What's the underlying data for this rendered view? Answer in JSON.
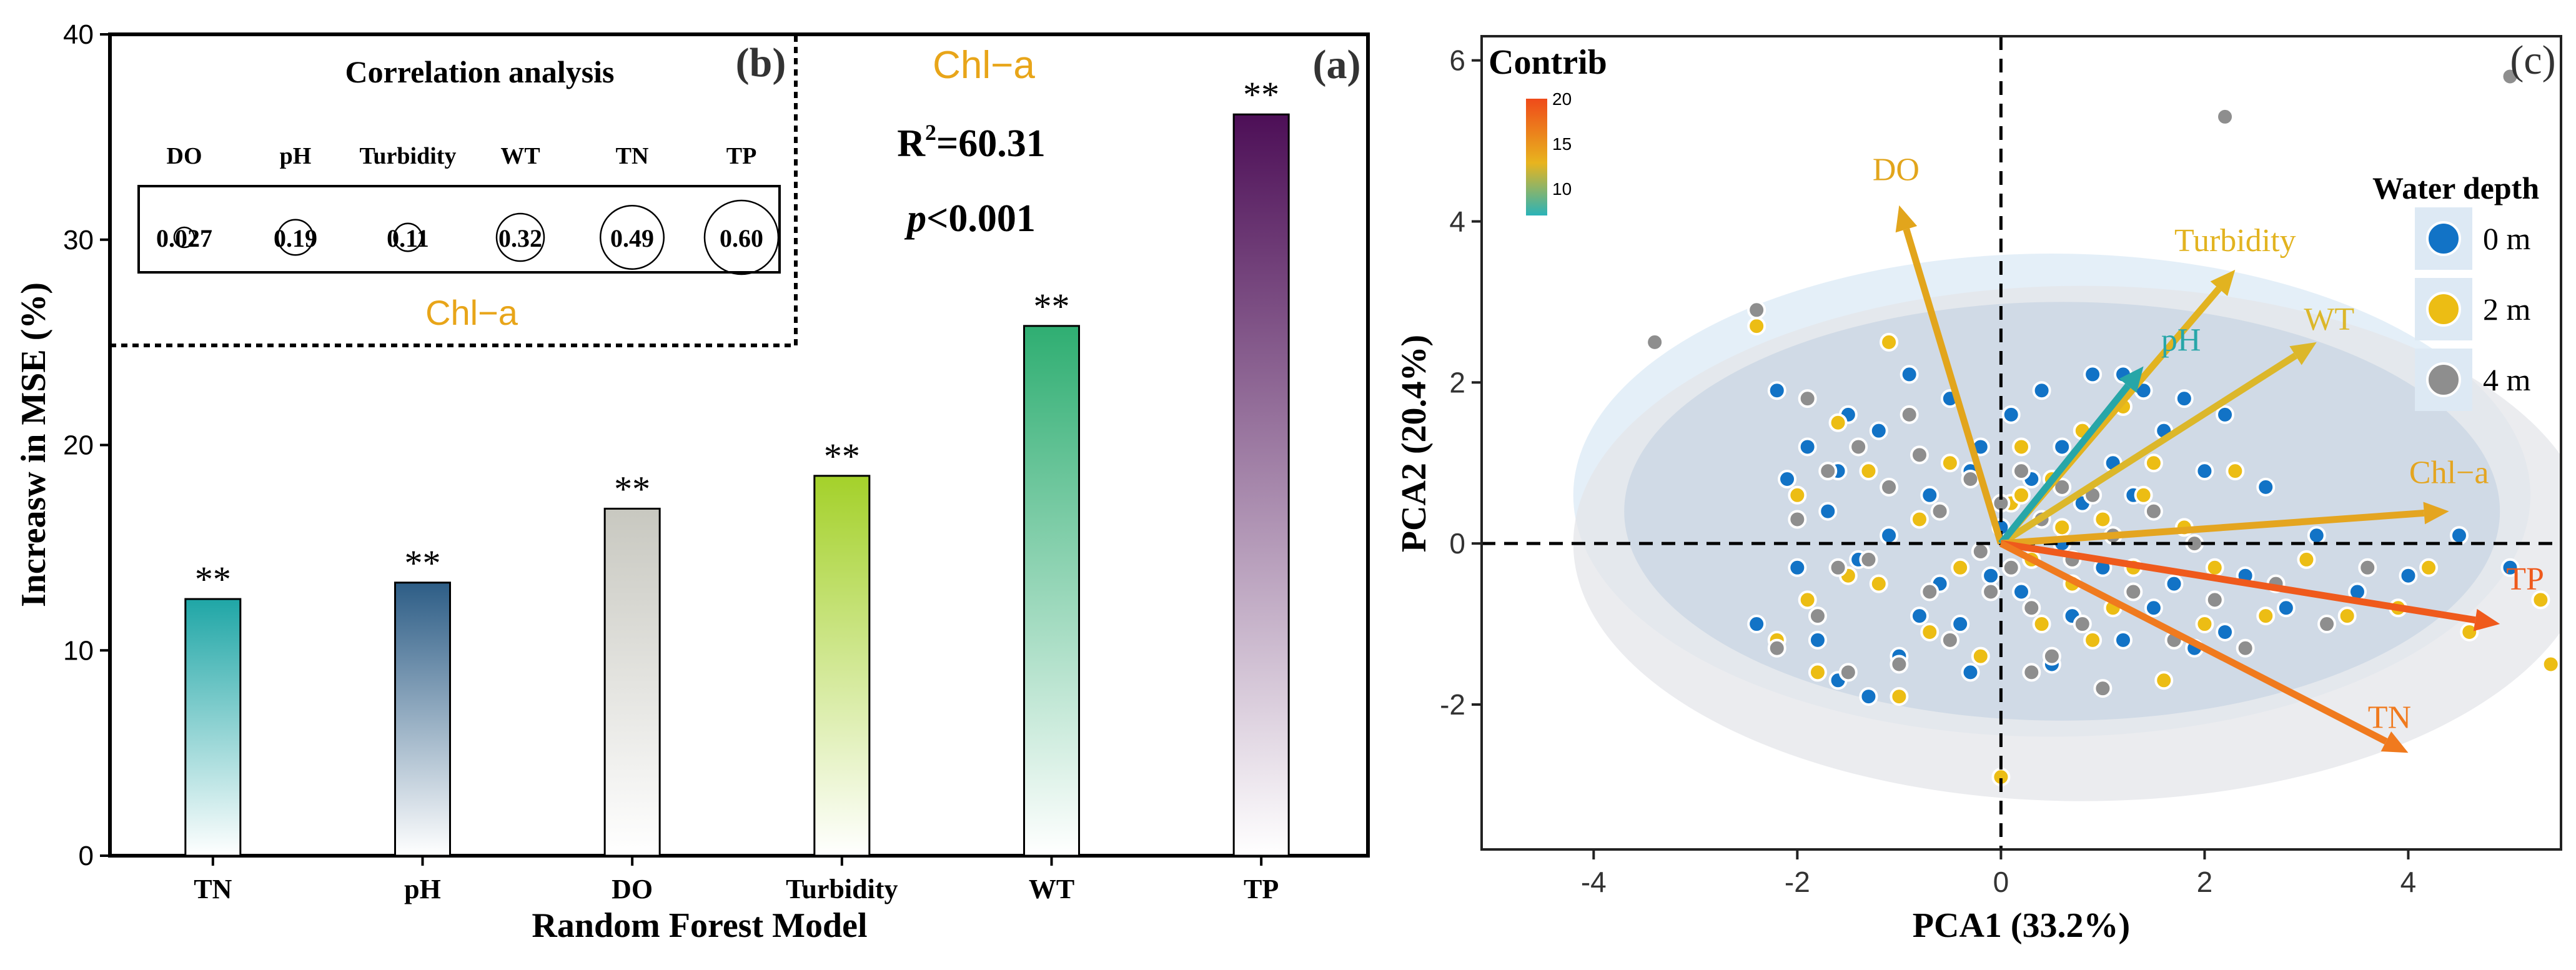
{
  "chart_data": [
    {
      "panel": "(a)",
      "type": "bar",
      "title": "Chl−a",
      "xlabel": "Random Forest Model",
      "ylabel": "Increasw in MSE (%)",
      "ylim": [
        0,
        40
      ],
      "yticks": [
        "0",
        "10",
        "20",
        "30",
        "40"
      ],
      "categories": [
        "TN",
        "pH",
        "DO",
        "Turbidity",
        "WT",
        "TP"
      ],
      "values": [
        12.5,
        13.3,
        16.9,
        18.5,
        25.8,
        36.1
      ],
      "significance": [
        "**",
        "**",
        "**",
        "**",
        "**",
        "**"
      ],
      "colors": [
        "#1fa6a6",
        "#2d5d86",
        "#c8c8c0",
        "#a4d12a",
        "#2fae72",
        "#4d0f57"
      ],
      "annotations": {
        "r2_base": "R",
        "r2_sup": "2",
        "r2_rest": "=60.31",
        "p_italic": "p",
        "p_rest": "<0.001"
      }
    },
    {
      "panel": "(b)",
      "type": "table",
      "title": "Correlation analysis",
      "row_label": "Chl−a",
      "columns": [
        "DO",
        "pH",
        "Turbidity",
        "WT",
        "TN",
        "TP"
      ],
      "values": [
        "0.027",
        "0.19",
        "0.11",
        "0.32",
        "0.49",
        "0.60"
      ],
      "numeric": [
        0.027,
        0.19,
        0.11,
        0.32,
        0.49,
        0.6
      ]
    },
    {
      "panel": "(c)",
      "type": "scatter",
      "title": "Contrib",
      "xlabel": "PCA1 (33.2%)",
      "ylabel": "PCA2 (20.4%)",
      "xlim": [
        -5.1,
        5.5
      ],
      "ylim": [
        -3.8,
        6.3
      ],
      "xticks": [
        -4,
        -2,
        0,
        2,
        4
      ],
      "yticks": [
        -2,
        0,
        2,
        4,
        6
      ],
      "contrib_scale": {
        "ticks": [
          "10",
          "15",
          "20"
        ],
        "min": 7,
        "max": 20
      },
      "legend": {
        "title": "Water depth",
        "entries": [
          "0 m",
          "2 m",
          "4 m"
        ],
        "colors": [
          "#1273c6",
          "#ecbd14",
          "#8e8e8e"
        ]
      },
      "ellipses": [
        {
          "group": "0 m",
          "cx": 0.5,
          "cy": 0.6,
          "rx": 4.7,
          "ry": 3.0,
          "fill": "#dbe9f5"
        },
        {
          "group": "4 m",
          "cx": 0.8,
          "cy": 0.0,
          "rx": 5.0,
          "ry": 3.2,
          "fill": "#e4e6ea"
        },
        {
          "group": "2 m",
          "cx": 0.6,
          "cy": 0.4,
          "rx": 4.3,
          "ry": 2.6,
          "fill": "#c9d5e3"
        }
      ],
      "loadings": [
        {
          "name": "DO",
          "x": -1.0,
          "y": 4.2,
          "color": "#e2a51c"
        },
        {
          "name": "Turbidity",
          "x": 2.3,
          "y": 3.4,
          "color": "#e2b320"
        },
        {
          "name": "WT",
          "x": 3.1,
          "y": 2.5,
          "color": "#dcb72a"
        },
        {
          "name": "pH",
          "x": 1.4,
          "y": 2.2,
          "color": "#27a6a8"
        },
        {
          "name": "Chl−a",
          "x": 4.4,
          "y": 0.4,
          "color": "#e4a520"
        },
        {
          "name": "TP",
          "x": 4.9,
          "y": -1.0,
          "color": "#ef5a1c"
        },
        {
          "name": "TN",
          "x": 4.0,
          "y": -2.6,
          "color": "#f07a1e"
        }
      ],
      "points": {
        "0 m": [
          [
            -2.2,
            1.9
          ],
          [
            -2.1,
            0.8
          ],
          [
            -2.0,
            -0.3
          ],
          [
            -1.9,
            1.2
          ],
          [
            -1.8,
            -1.2
          ],
          [
            -1.7,
            0.4
          ],
          [
            -1.6,
            -1.7
          ],
          [
            -1.5,
            1.6
          ],
          [
            -1.4,
            -0.2
          ],
          [
            -1.3,
            -1.9
          ],
          [
            -1.2,
            1.4
          ],
          [
            -1.1,
            0.1
          ],
          [
            -1.0,
            -1.4
          ],
          [
            -0.9,
            2.1
          ],
          [
            -0.8,
            -0.9
          ],
          [
            -0.7,
            0.6
          ],
          [
            -0.6,
            -0.5
          ],
          [
            -0.5,
            1.8
          ],
          [
            -0.4,
            -1.0
          ],
          [
            -0.3,
            0.9
          ],
          [
            -0.2,
            1.2
          ],
          [
            -0.1,
            -0.4
          ],
          [
            0.0,
            0.2
          ],
          [
            0.1,
            1.6
          ],
          [
            0.2,
            -0.6
          ],
          [
            0.3,
            0.8
          ],
          [
            0.4,
            1.9
          ],
          [
            0.5,
            -1.5
          ],
          [
            0.6,
            1.2
          ],
          [
            0.7,
            -0.9
          ],
          [
            0.8,
            0.5
          ],
          [
            0.9,
            2.1
          ],
          [
            1.0,
            -0.3
          ],
          [
            1.1,
            1.0
          ],
          [
            1.2,
            -1.2
          ],
          [
            1.3,
            0.6
          ],
          [
            1.4,
            1.9
          ],
          [
            1.5,
            -0.8
          ],
          [
            1.6,
            1.4
          ],
          [
            1.7,
            -0.5
          ],
          [
            1.8,
            1.8
          ],
          [
            1.9,
            -1.3
          ],
          [
            2.0,
            0.9
          ],
          [
            2.2,
            1.6
          ],
          [
            2.4,
            -0.4
          ],
          [
            2.6,
            0.7
          ],
          [
            2.8,
            -0.8
          ],
          [
            3.1,
            0.1
          ],
          [
            3.5,
            -0.6
          ],
          [
            4.0,
            -0.4
          ],
          [
            4.5,
            0.1
          ],
          [
            5.0,
            -0.3
          ],
          [
            -2.4,
            -1.0
          ],
          [
            -1.6,
            0.9
          ],
          [
            -0.3,
            -1.6
          ],
          [
            0.6,
            0.0
          ],
          [
            2.2,
            -1.1
          ],
          [
            1.2,
            2.1
          ]
        ],
        "2 m": [
          [
            -2.4,
            2.7
          ],
          [
            -2.2,
            -1.2
          ],
          [
            -2.0,
            0.6
          ],
          [
            -1.8,
            -1.6
          ],
          [
            -1.6,
            1.5
          ],
          [
            -1.5,
            -0.4
          ],
          [
            -1.3,
            0.9
          ],
          [
            -1.1,
            2.5
          ],
          [
            -1.0,
            -1.9
          ],
          [
            -0.8,
            0.3
          ],
          [
            -0.7,
            -1.1
          ],
          [
            -0.5,
            1.0
          ],
          [
            -0.4,
            -0.3
          ],
          [
            -0.2,
            -1.4
          ],
          [
            0.0,
            -2.9
          ],
          [
            0.1,
            0.5
          ],
          [
            0.2,
            1.2
          ],
          [
            0.3,
            -0.2
          ],
          [
            0.4,
            -1.0
          ],
          [
            0.5,
            0.8
          ],
          [
            0.6,
            0.2
          ],
          [
            0.7,
            -0.5
          ],
          [
            0.8,
            1.4
          ],
          [
            0.9,
            -1.2
          ],
          [
            1.0,
            0.3
          ],
          [
            1.1,
            -0.8
          ],
          [
            1.2,
            1.7
          ],
          [
            1.3,
            -0.3
          ],
          [
            1.4,
            0.6
          ],
          [
            1.6,
            -1.7
          ],
          [
            1.8,
            0.2
          ],
          [
            2.0,
            -1.0
          ],
          [
            2.3,
            0.9
          ],
          [
            2.6,
            -0.9
          ],
          [
            3.0,
            -0.2
          ],
          [
            3.4,
            -0.9
          ],
          [
            3.9,
            -0.8
          ],
          [
            4.2,
            -0.3
          ],
          [
            4.6,
            -1.1
          ],
          [
            5.3,
            -0.7
          ],
          [
            5.4,
            -1.5
          ],
          [
            -1.9,
            -0.7
          ],
          [
            -1.2,
            -0.5
          ],
          [
            0.2,
            0.6
          ],
          [
            1.5,
            1.0
          ],
          [
            2.1,
            -0.3
          ]
        ],
        "4 m": [
          [
            -3.4,
            2.5
          ],
          [
            -2.4,
            2.9
          ],
          [
            -2.2,
            -1.3
          ],
          [
            -2.0,
            0.3
          ],
          [
            -1.9,
            1.8
          ],
          [
            -1.8,
            -0.9
          ],
          [
            -1.7,
            0.9
          ],
          [
            -1.5,
            -1.6
          ],
          [
            -1.4,
            1.2
          ],
          [
            -1.3,
            -0.2
          ],
          [
            -1.1,
            0.7
          ],
          [
            -1.0,
            -1.5
          ],
          [
            -0.9,
            1.6
          ],
          [
            -0.7,
            -0.6
          ],
          [
            -0.6,
            0.4
          ],
          [
            -0.5,
            -1.2
          ],
          [
            -0.3,
            0.8
          ],
          [
            -0.2,
            -0.1
          ],
          [
            -0.1,
            -0.6
          ],
          [
            0.0,
            0.5
          ],
          [
            0.1,
            -0.3
          ],
          [
            0.2,
            0.9
          ],
          [
            0.3,
            -0.8
          ],
          [
            0.4,
            0.3
          ],
          [
            0.5,
            -1.4
          ],
          [
            0.6,
            0.7
          ],
          [
            0.7,
            -0.2
          ],
          [
            0.8,
            -1.0
          ],
          [
            0.9,
            0.6
          ],
          [
            1.0,
            -1.8
          ],
          [
            1.1,
            0.1
          ],
          [
            1.3,
            -0.6
          ],
          [
            1.5,
            0.4
          ],
          [
            1.7,
            -1.2
          ],
          [
            1.9,
            0.0
          ],
          [
            2.1,
            -0.7
          ],
          [
            2.2,
            5.3
          ],
          [
            2.4,
            -1.3
          ],
          [
            2.7,
            -0.5
          ],
          [
            3.2,
            -1.0
          ],
          [
            3.6,
            -0.3
          ],
          [
            5.0,
            5.8
          ],
          [
            -1.6,
            -0.3
          ],
          [
            -0.8,
            1.1
          ],
          [
            0.3,
            -1.6
          ]
        ]
      }
    }
  ],
  "labels": {
    "panel_a": "(a)",
    "panel_b": "(b)",
    "panel_c": "(c)"
  }
}
